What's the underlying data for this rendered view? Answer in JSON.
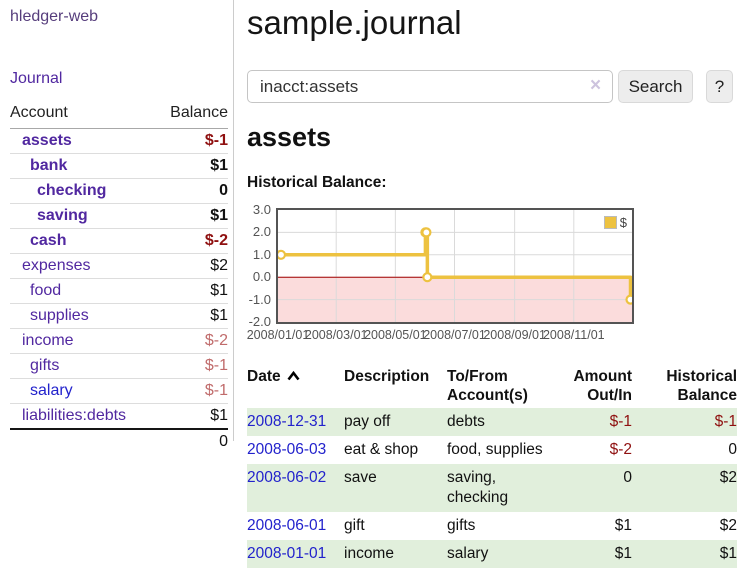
{
  "app": {
    "brand": "hledger-web",
    "nav_journal": "Journal"
  },
  "sidebar": {
    "headers": {
      "account": "Account",
      "balance": "Balance"
    },
    "rows": [
      {
        "account": "assets",
        "balance": "$-1",
        "level": 1,
        "in_filter": true,
        "negative": "strong"
      },
      {
        "account": "bank",
        "balance": "$1",
        "level": 2,
        "in_filter": true
      },
      {
        "account": "checking",
        "balance": "0",
        "level": 3,
        "in_filter": true
      },
      {
        "account": "saving",
        "balance": "$1",
        "level": 3,
        "in_filter": true
      },
      {
        "account": "cash",
        "balance": "$-2",
        "level": 2,
        "in_filter": true,
        "negative": "strong"
      },
      {
        "account": "expenses",
        "balance": "$2",
        "level": 1,
        "in_filter": false
      },
      {
        "account": "food",
        "balance": "$1",
        "level": 2,
        "in_filter": false
      },
      {
        "account": "supplies",
        "balance": "$1",
        "level": 2,
        "in_filter": false
      },
      {
        "account": "income",
        "balance": "$-2",
        "level": 1,
        "in_filter": false,
        "negative": "muted"
      },
      {
        "account": "gifts",
        "balance": "$-1",
        "level": 2,
        "in_filter": false,
        "negative": "muted"
      },
      {
        "account": "salary",
        "balance": "$-1",
        "level": 2,
        "in_filter": false,
        "negative": "muted"
      },
      {
        "account": "liabilities:debts",
        "balance": "$1",
        "level": 1,
        "in_filter": false
      }
    ],
    "total": "0"
  },
  "main": {
    "title": "sample.journal",
    "search": {
      "value": "inacct:assets",
      "clear_label": "×",
      "button_label": "Search",
      "help_label": "?"
    },
    "account_heading": "assets",
    "chart_heading": "Historical Balance:"
  },
  "chart_data": {
    "type": "line",
    "step": true,
    "title": "Historical Balance",
    "series": [
      {
        "name": "$",
        "points": [
          [
            "2008-01-01",
            1
          ],
          [
            "2008-06-01",
            2
          ],
          [
            "2008-06-02",
            2
          ],
          [
            "2008-06-03",
            0
          ],
          [
            "2008-12-31",
            -1
          ]
        ]
      }
    ],
    "xlim": [
      "2008-01-01",
      "2008-12-31"
    ],
    "ylim": [
      -2,
      3
    ],
    "xticks": [
      {
        "date": "2008-01-01",
        "label": "2008/01/01"
      },
      {
        "date": "2008-03-01",
        "label": "2008/03/01"
      },
      {
        "date": "2008-05-01",
        "label": "2008/05/01"
      },
      {
        "date": "2008-07-01",
        "label": "2008/07/01"
      },
      {
        "date": "2008-09-01",
        "label": "2008/09/01"
      },
      {
        "date": "2008-11-01",
        "label": "2008/11/01"
      }
    ],
    "yticks": [
      {
        "value": 3,
        "label": "3.0"
      },
      {
        "value": 2,
        "label": "2.0"
      },
      {
        "value": 1,
        "label": "1.0"
      },
      {
        "value": 0,
        "label": "0.0"
      },
      {
        "value": -1,
        "label": "-1.0"
      },
      {
        "value": -2,
        "label": "-2.0"
      }
    ],
    "legend": {
      "label": "$",
      "position": "top-right"
    },
    "grid": true,
    "colors": {
      "line": "#edc240",
      "negative_region": "#fbdcdc",
      "zero_line": "#a40000",
      "grid": "#dadada",
      "border": "#545454",
      "tick_text": "#545454"
    }
  },
  "register": {
    "headers": {
      "date": "Date",
      "description": "Description",
      "accounts": "To/From Account(s)",
      "amount": "Amount Out/In",
      "balance": "Historical Balance"
    },
    "rows": [
      {
        "date": "2008-12-31",
        "description": "pay off",
        "accounts": "debts",
        "amount": "$-1",
        "balance": "$-1"
      },
      {
        "date": "2008-06-03",
        "description": "eat & shop",
        "accounts": "food, supplies",
        "amount": "$-2",
        "balance": "0"
      },
      {
        "date": "2008-06-02",
        "description": "save",
        "accounts": "saving, checking",
        "amount": "0",
        "balance": "$2"
      },
      {
        "date": "2008-06-01",
        "description": "gift",
        "accounts": "gifts",
        "amount": "$1",
        "balance": "$2"
      },
      {
        "date": "2008-01-01",
        "description": "income",
        "accounts": "salary",
        "amount": "$1",
        "balance": "$1"
      }
    ]
  },
  "colors": {
    "link_purple": "#5128a0",
    "brand_purple": "#563d7c",
    "link_blue": "#2222cc",
    "negative_strong": "#8f1010",
    "negative_muted": "#c06b6b",
    "row_green": "#e1efdc"
  }
}
